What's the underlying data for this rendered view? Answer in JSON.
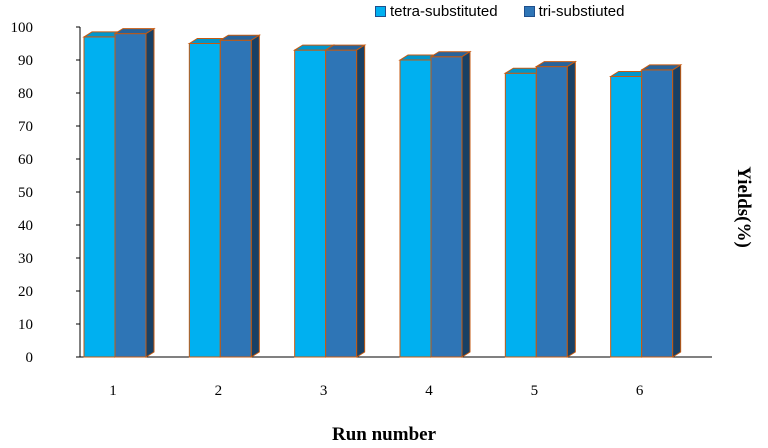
{
  "chart_data": {
    "type": "bar",
    "categories": [
      "1",
      "2",
      "3",
      "4",
      "5",
      "6"
    ],
    "series": [
      {
        "name": "tetra-substituted",
        "values": [
          97,
          95,
          93,
          90,
          86,
          85
        ],
        "color": "#00b0f0"
      },
      {
        "name": "tri-substiuted",
        "values": [
          98,
          96,
          93,
          91,
          88,
          87
        ],
        "color": "#2e75b6"
      }
    ],
    "xlabel": "Run number",
    "ylabel": "Yields(%)",
    "ylim": [
      0,
      100
    ],
    "yticks": [
      "0",
      "10",
      "20",
      "30",
      "40",
      "50",
      "60",
      "70",
      "80",
      "90",
      "100"
    ],
    "grid": false,
    "legend_position": "top-right",
    "bar_outline_color": "#c55a11"
  }
}
